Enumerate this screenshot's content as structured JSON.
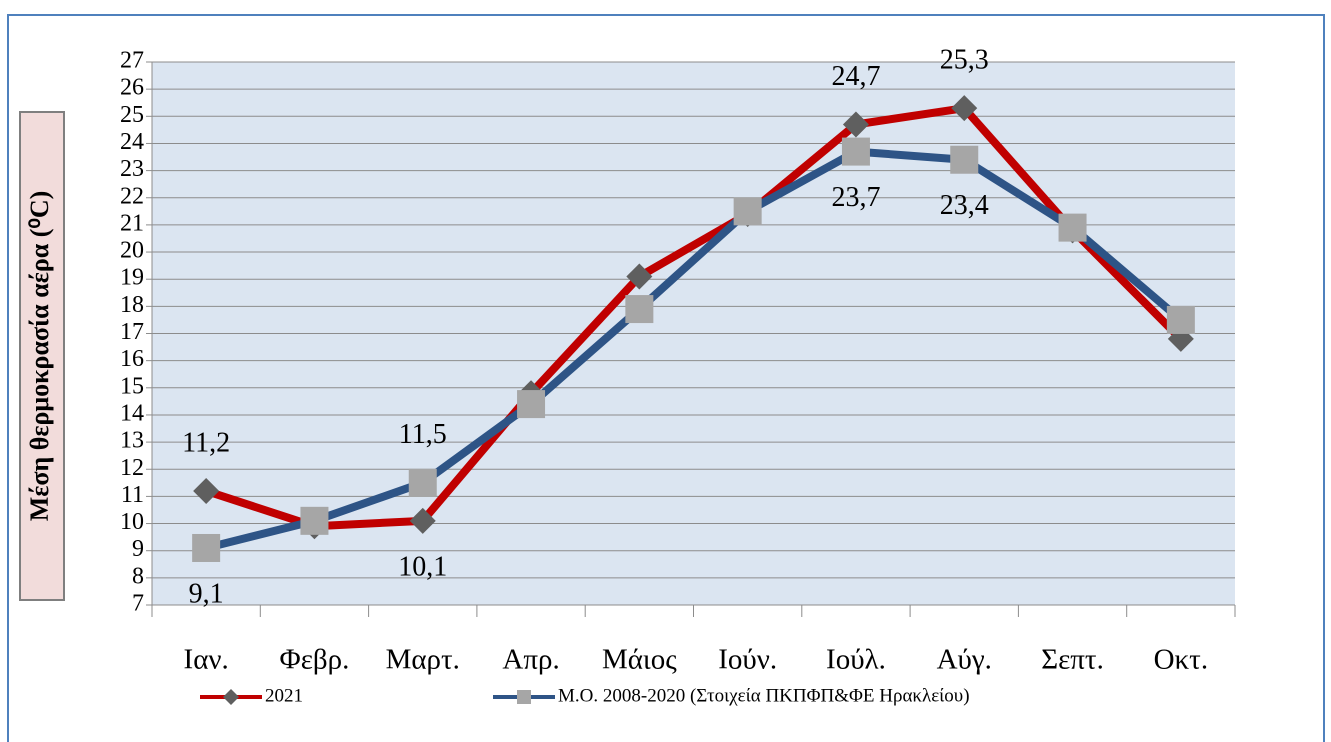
{
  "chart_data": {
    "type": "line",
    "y_label": "Μέση  θερμοκρασία αέρα (⁰C)",
    "categories": [
      "Ιαν.",
      "Φεβρ.",
      "Μαρτ.",
      "Απρ.",
      "Μάιος",
      "Ιούν.",
      "Ιούλ.",
      "Αύγ.",
      "Σεπτ.",
      "Οκτ."
    ],
    "series": [
      {
        "name": "2021",
        "color": "#c00000",
        "marker": "diamond",
        "marker_color": "#5f5f5f",
        "values": [
          11.2,
          9.9,
          10.1,
          14.8,
          19.1,
          21.4,
          24.7,
          25.3,
          20.8,
          16.8
        ],
        "value_labels": [
          "11,2",
          null,
          "10,1",
          null,
          null,
          null,
          "24,7",
          "25,3",
          null,
          null
        ]
      },
      {
        "name": "Μ.Ο. 2008-2020 (Στοιχεία ΠΚΠΦΠ&ΦΕ Ηρακλείου)",
        "color": "#2e5486",
        "marker": "square",
        "marker_color": "#a6a6a6",
        "values": [
          9.1,
          10.1,
          11.5,
          14.4,
          17.9,
          21.5,
          23.7,
          23.4,
          20.9,
          17.5
        ],
        "value_labels": [
          "9,1",
          null,
          "11,5",
          null,
          null,
          null,
          "23,7",
          "23,4",
          null,
          null
        ]
      }
    ],
    "ylim": [
      7,
      27
    ],
    "yticks": [
      7,
      8,
      9,
      10,
      11,
      12,
      13,
      14,
      15,
      16,
      17,
      18,
      19,
      20,
      21,
      22,
      23,
      24,
      25,
      26,
      27
    ],
    "grid": true,
    "legend": "bottom",
    "plot_background": "#dbe5f1"
  }
}
